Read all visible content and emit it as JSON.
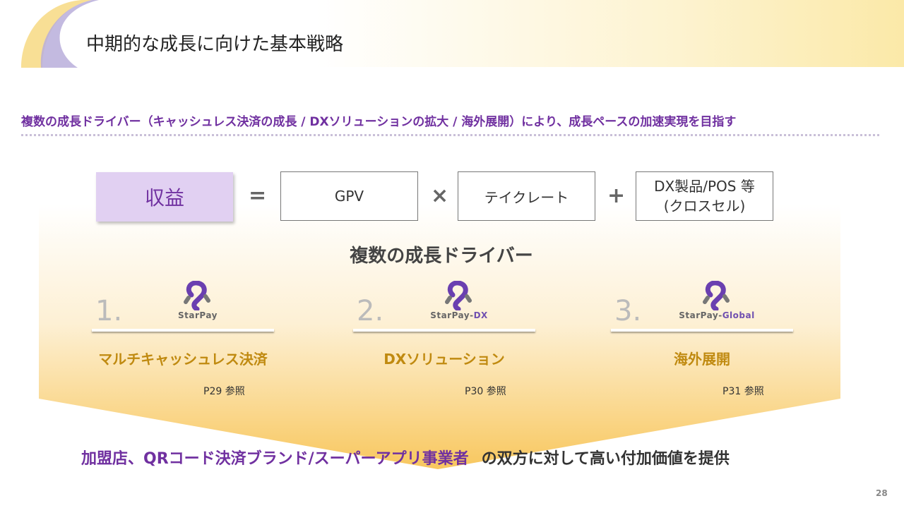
{
  "header": {
    "title": "中期的な成長に向けた基本戦略"
  },
  "subtitle": "複数の成長ドライバー（キャッシュレス決済の成長 / DXソリューションの拡大 / 海外展開）により、成長ペースの加速実現を目指す",
  "formula": {
    "revenue": "収益",
    "eq": "=",
    "gpv": "GPV",
    "times": "×",
    "take_rate": "テイクレート",
    "plus": "+",
    "dx_line1": "DX製品/POS 等",
    "dx_line2": "(クロスセル)"
  },
  "drivers_title": "複数の成長ドライバー",
  "drivers": [
    {
      "num": "1.",
      "logo": "StarPay",
      "logo_suffix": "",
      "name": "マルチキャッシュレス決済",
      "ref": "P29  参照"
    },
    {
      "num": "2.",
      "logo": "StarPay-",
      "logo_suffix": "DX",
      "name": "DXソリューション",
      "ref": "P30  参照"
    },
    {
      "num": "3.",
      "logo": "StarPay-",
      "logo_suffix": "Global",
      "name": "海外展開",
      "ref": "P31  参照"
    }
  ],
  "bottom": {
    "highlight": "加盟店、QRコード決済ブランド/スーパーアプリ事業者",
    "rest": "の双方に対して高い付加価値を提供"
  },
  "page_number": "28",
  "colors": {
    "purple": "#7030a0",
    "gold": "#c08a10",
    "revenue_fill": "#e1d0f2"
  }
}
